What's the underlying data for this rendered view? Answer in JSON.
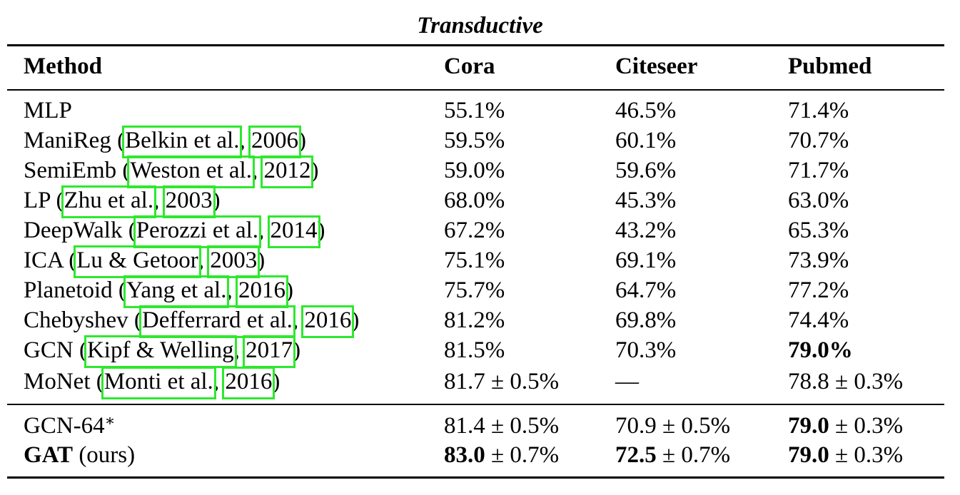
{
  "caption": "Transductive",
  "headers": [
    "Method",
    "Cora",
    "Citeseer",
    "Pubmed"
  ],
  "rows": [
    {
      "name": "MLP",
      "cite_author": "",
      "cite_year": "",
      "cora": "55.1%",
      "citeseer": "46.5%",
      "pubmed": "71.4%"
    },
    {
      "name": "ManiReg",
      "cite_author": "Belkin et al.",
      "cite_year": "2006",
      "cora": "59.5%",
      "citeseer": "60.1%",
      "pubmed": "70.7%"
    },
    {
      "name": "SemiEmb",
      "cite_author": "Weston et al.",
      "cite_year": "2012",
      "cora": "59.0%",
      "citeseer": "59.6%",
      "pubmed": "71.7%"
    },
    {
      "name": "LP",
      "cite_author": "Zhu et al.",
      "cite_year": "2003",
      "cora": "68.0%",
      "citeseer": "45.3%",
      "pubmed": "63.0%"
    },
    {
      "name": "DeepWalk",
      "cite_author": "Perozzi et al.",
      "cite_year": "2014",
      "cora": "67.2%",
      "citeseer": "43.2%",
      "pubmed": "65.3%"
    },
    {
      "name": "ICA",
      "cite_author": "Lu & Getoor",
      "cite_year": "2003",
      "cora": "75.1%",
      "citeseer": "69.1%",
      "pubmed": "73.9%"
    },
    {
      "name": "Planetoid",
      "cite_author": "Yang et al.",
      "cite_year": "2016",
      "cora": "75.7%",
      "citeseer": "64.7%",
      "pubmed": "77.2%"
    },
    {
      "name": "Chebyshev",
      "cite_author": "Defferrard et al.",
      "cite_year": "2016",
      "cora": "81.2%",
      "citeseer": "69.8%",
      "pubmed": "74.4%"
    },
    {
      "name": "GCN",
      "cite_author": "Kipf & Welling",
      "cite_year": "2017",
      "cora": "81.5%",
      "citeseer": "70.3%",
      "pubmed": "79.0%"
    },
    {
      "name": "MoNet",
      "cite_author": "Monti et al.",
      "cite_year": "2016",
      "cora": "81.7 ± 0.5%",
      "citeseer": "—",
      "pubmed": "78.8 ± 0.3%"
    }
  ],
  "ours": [
    {
      "name": "GCN-64",
      "suffix": "∗",
      "cora_bold": "",
      "cora": "81.4 ± 0.5%",
      "citeseer_bold": "",
      "citeseer": "70.9 ± 0.5%",
      "pubmed_bold": "79.0",
      "pubmed": " ± 0.3%"
    },
    {
      "name": "GAT",
      "suffix": " (ours)",
      "cora_bold": "83.0",
      "cora": " ± 0.7%",
      "citeseer_bold": "72.5",
      "citeseer": " ± 0.7%",
      "pubmed_bold": "79.0",
      "pubmed": " ± 0.3%"
    }
  ]
}
